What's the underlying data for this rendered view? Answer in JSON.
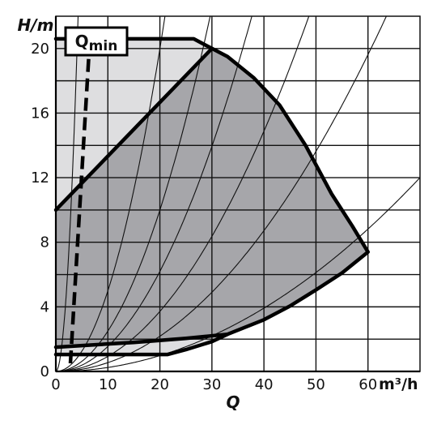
{
  "chart_data": {
    "type": "area",
    "x_axis": {
      "label": "Q",
      "unit": "m³/h",
      "range": [
        0,
        70
      ],
      "ticks": [
        0,
        10,
        20,
        30,
        40,
        50,
        60
      ]
    },
    "y_axis": {
      "label": "H/m",
      "range": [
        0,
        22
      ],
      "ticks": [
        0,
        4,
        8,
        12,
        16,
        20
      ]
    },
    "grid": true,
    "qmin_label": "Qmin",
    "regions": [
      {
        "name": "light",
        "color": "#dedee0",
        "points": [
          [
            0,
            20.6
          ],
          [
            26.5,
            20.6
          ],
          [
            30,
            20
          ],
          [
            0,
            10
          ]
        ]
      },
      {
        "name": "dark",
        "color": "#a6a6aa",
        "points": [
          [
            0,
            10
          ],
          [
            30,
            20
          ],
          [
            33,
            19.5
          ],
          [
            38,
            18.2
          ],
          [
            43,
            16.5
          ],
          [
            48,
            14
          ],
          [
            53,
            11
          ],
          [
            57,
            9
          ],
          [
            60,
            7.4
          ],
          [
            55,
            6.1
          ],
          [
            50,
            5.05
          ],
          [
            45,
            4.05
          ],
          [
            40,
            3.2
          ],
          [
            33,
            2.3
          ],
          [
            25,
            2.05
          ],
          [
            15,
            1.8
          ],
          [
            0,
            1.5
          ]
        ]
      },
      {
        "name": "light_bottom",
        "color": "#dedee0",
        "points": [
          [
            0,
            1.5
          ],
          [
            15,
            1.8
          ],
          [
            25,
            2.05
          ],
          [
            33,
            2.3
          ],
          [
            30,
            1.85
          ],
          [
            25,
            1.35
          ],
          [
            21.5,
            1.05
          ],
          [
            0,
            1.05
          ]
        ]
      }
    ],
    "outlines": [
      [
        [
          0,
          20.6
        ],
        [
          26.5,
          20.6
        ],
        [
          30,
          20
        ],
        [
          33,
          19.5
        ],
        [
          38,
          18.2
        ],
        [
          43,
          16.5
        ],
        [
          48,
          14
        ],
        [
          53,
          11
        ],
        [
          57,
          9
        ],
        [
          60,
          7.4
        ],
        [
          55,
          6.1
        ],
        [
          50,
          5.05
        ],
        [
          45,
          4.05
        ],
        [
          40,
          3.2
        ],
        [
          33,
          2.3
        ],
        [
          25,
          2.05
        ],
        [
          15,
          1.8
        ],
        [
          0,
          1.5
        ]
      ],
      [
        [
          0,
          10
        ],
        [
          30,
          20
        ]
      ],
      [
        [
          0,
          1.05
        ],
        [
          21.5,
          1.05
        ],
        [
          25,
          1.35
        ],
        [
          30,
          1.85
        ],
        [
          33,
          2.3
        ]
      ]
    ],
    "system_curves_k": [
      1.2,
      0.05,
      0.025,
      0.0155,
      0.0093,
      0.00545,
      0.00245
    ],
    "qmin_line": [
      [
        2.8,
        0.5
      ],
      [
        6.5,
        20.5
      ]
    ]
  }
}
